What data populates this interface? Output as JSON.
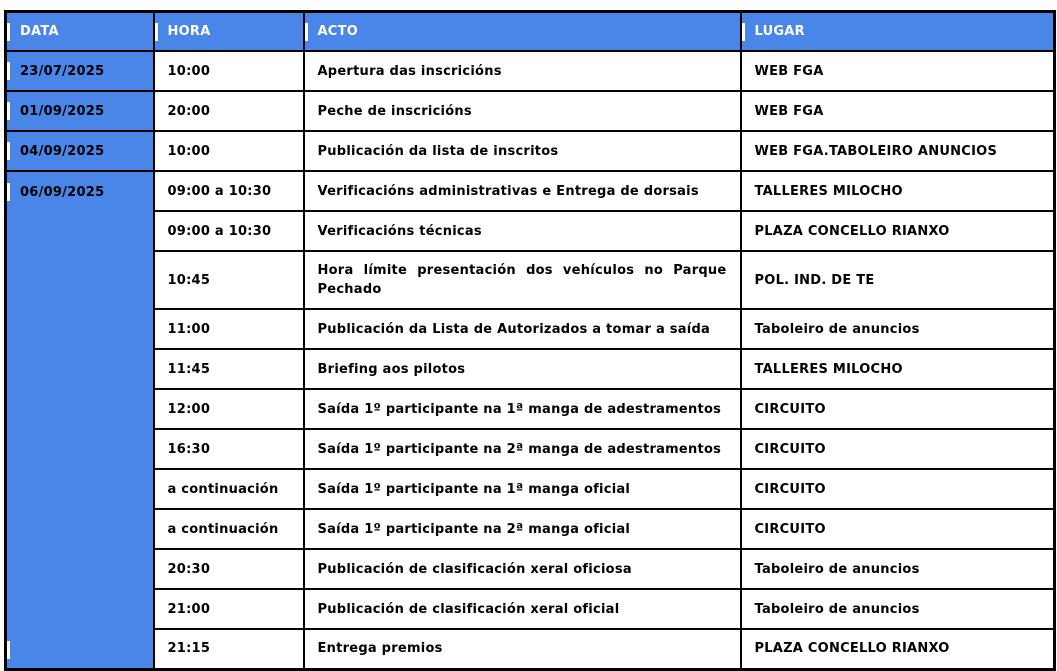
{
  "table": {
    "accent_color": "#4a86e8",
    "border_color": "#000000",
    "header_text_color": "#ffffff",
    "body_text_color": "#000000",
    "columns": [
      "DATA",
      "HORA",
      "ACTO",
      "LUGAR"
    ],
    "rows": [
      {
        "date": "23/07/2025",
        "date_rowspan": 1,
        "hora": "10:00",
        "acto": "Apertura das inscricións",
        "lugar": "WEB FGA"
      },
      {
        "date": "01/09/2025",
        "date_rowspan": 1,
        "hora": "20:00",
        "acto": "Peche de inscricións",
        "lugar": "WEB FGA"
      },
      {
        "date": "04/09/2025",
        "date_rowspan": 1,
        "hora": "10:00",
        "acto": "Publicación da lista de inscritos",
        "lugar": "WEB FGA.TABOLEIRO ANUNCIOS"
      },
      {
        "date": "06/09/2025",
        "date_rowspan": 12,
        "hora": "09:00 a 10:30",
        "acto": "Verificacións administrativas e Entrega de dorsais",
        "lugar": "TALLERES MILOCHO"
      },
      {
        "hora": "09:00 a 10:30",
        "acto": "Verificacións técnicas",
        "lugar": "PLAZA CONCELLO RIANXO"
      },
      {
        "hora": "10:45",
        "acto": "Hora límite presentación dos vehículos no Parque Pechado",
        "lugar": "POL. IND. DE TE"
      },
      {
        "hora": "11:00",
        "acto": "Publicación da Lista de Autorizados a tomar a saída",
        "lugar": "Taboleiro de anuncios"
      },
      {
        "hora": "11:45",
        "acto": "Briefing aos pilotos",
        "lugar": "TALLERES MILOCHO"
      },
      {
        "hora": "12:00",
        "acto": "Saída 1º participante na 1ª manga de adestramentos",
        "lugar": "CIRCUITO"
      },
      {
        "hora": "16:30",
        "acto": "Saída 1º participante na 2ª manga de adestramentos",
        "lugar": "CIRCUITO"
      },
      {
        "hora": "a continuación",
        "acto": "Saída 1º participante na 1ª manga oficial",
        "lugar": "CIRCUITO"
      },
      {
        "hora": "a continuación",
        "acto": "Saída 1º participante na 2ª manga oficial",
        "lugar": "CIRCUITO"
      },
      {
        "hora": "20:30",
        "acto": "Publicación de clasificación xeral oficiosa",
        "lugar": "Taboleiro de anuncios"
      },
      {
        "hora": "21:00",
        "acto": "Publicación de clasificación xeral oficial",
        "lugar": "Taboleiro de anuncios"
      },
      {
        "hora": "21:15",
        "acto": "Entrega premios",
        "lugar": "PLAZA CONCELLO RIANXO"
      }
    ]
  }
}
